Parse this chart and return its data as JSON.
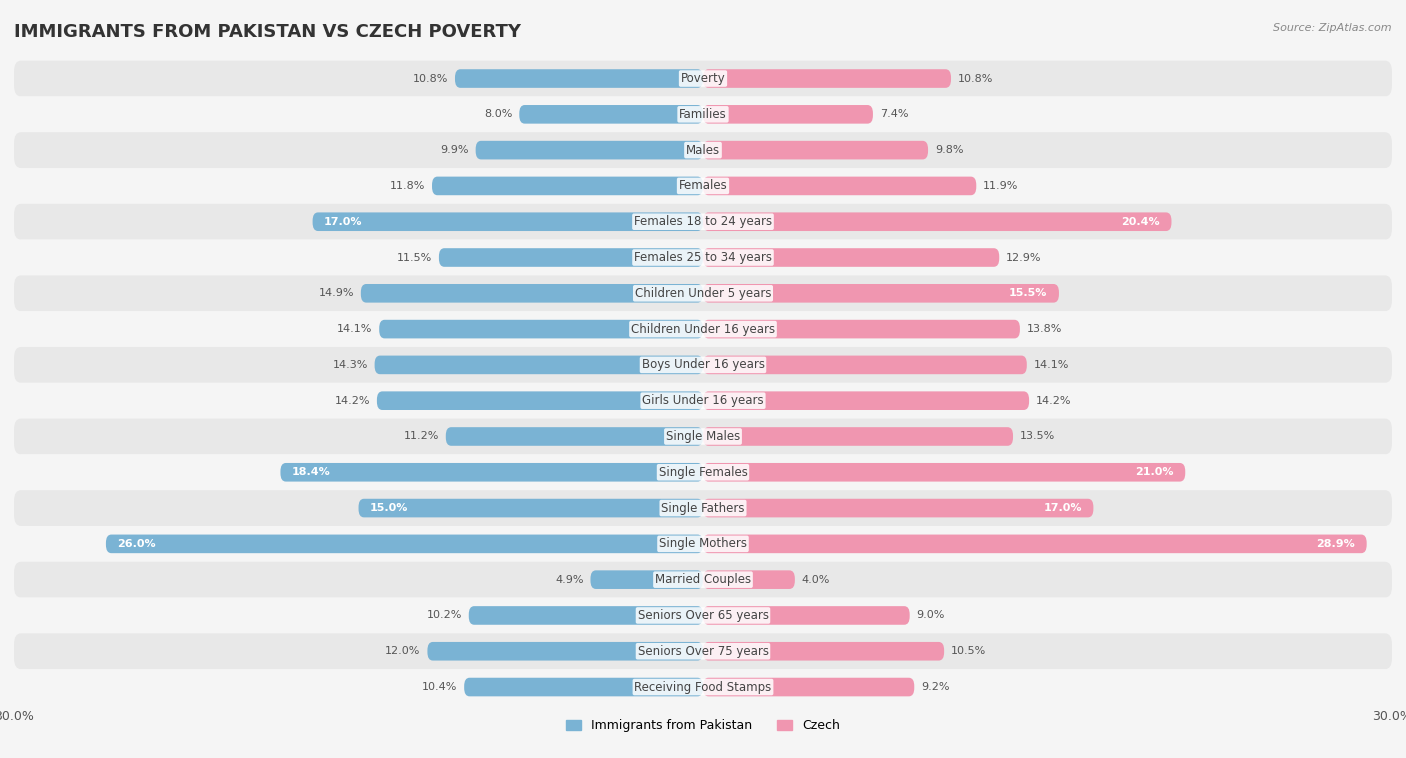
{
  "title": "IMMIGRANTS FROM PAKISTAN VS CZECH POVERTY",
  "source": "Source: ZipAtlas.com",
  "categories": [
    "Poverty",
    "Families",
    "Males",
    "Females",
    "Females 18 to 24 years",
    "Females 25 to 34 years",
    "Children Under 5 years",
    "Children Under 16 years",
    "Boys Under 16 years",
    "Girls Under 16 years",
    "Single Males",
    "Single Females",
    "Single Fathers",
    "Single Mothers",
    "Married Couples",
    "Seniors Over 65 years",
    "Seniors Over 75 years",
    "Receiving Food Stamps"
  ],
  "pakistan_values": [
    10.8,
    8.0,
    9.9,
    11.8,
    17.0,
    11.5,
    14.9,
    14.1,
    14.3,
    14.2,
    11.2,
    18.4,
    15.0,
    26.0,
    4.9,
    10.2,
    12.0,
    10.4
  ],
  "czech_values": [
    10.8,
    7.4,
    9.8,
    11.9,
    20.4,
    12.9,
    15.5,
    13.8,
    14.1,
    14.2,
    13.5,
    21.0,
    17.0,
    28.9,
    4.0,
    9.0,
    10.5,
    9.2
  ],
  "pakistan_color": "#7ab3d4",
  "czech_color": "#f096b0",
  "background_color": "#f5f5f5",
  "row_colors": [
    "#e8e8e8",
    "#f5f5f5"
  ],
  "axis_max": 30.0,
  "bar_height": 0.52,
  "title_fontsize": 13,
  "label_fontsize": 8.5,
  "value_fontsize": 8.0,
  "legend_fontsize": 9,
  "value_inside_threshold": 15.0
}
